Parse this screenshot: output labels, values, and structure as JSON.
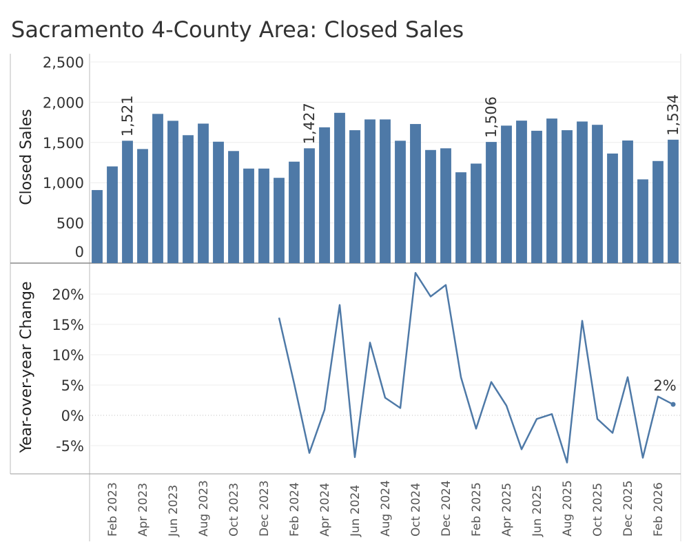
{
  "title": "Sacramento 4-County Area: Closed Sales",
  "colors": {
    "bar": "#4e79a7",
    "line": "#4e79a7",
    "text": "#333333",
    "grid": "#ececec",
    "axis": "#888888"
  },
  "chart_data": [
    {
      "type": "bar",
      "ylabel": "Closed Sales",
      "ylim": [
        0,
        2500
      ],
      "yticks": [
        0,
        500,
        1000,
        1500,
        2000,
        2500
      ],
      "ytick_labels": [
        "0",
        "500",
        "1,000",
        "1,500",
        "2,000",
        "2,500"
      ],
      "grid": true,
      "categories": [
        "Jan 2023",
        "Feb 2023",
        "Mar 2023",
        "Apr 2023",
        "May 2023",
        "Jun 2023",
        "Jul 2023",
        "Aug 2023",
        "Sep 2023",
        "Oct 2023",
        "Nov 2023",
        "Dec 2023",
        "Jan 2024",
        "Feb 2024",
        "Mar 2024",
        "Apr 2024",
        "May 2024",
        "Jun 2024",
        "Jul 2024",
        "Aug 2024",
        "Sep 2024",
        "Oct 2024",
        "Nov 2024",
        "Dec 2024",
        "Jan 2025",
        "Feb 2025",
        "Mar 2025",
        "Apr 2025",
        "May 2025",
        "Jun 2025",
        "Jul 2025",
        "Aug 2025",
        "Sep 2025",
        "Oct 2025",
        "Nov 2025",
        "Dec 2025",
        "Jan 2026",
        "Feb 2026",
        "Mar 2026"
      ],
      "values": [
        908,
        1202,
        1521,
        1418,
        1855,
        1769,
        1590,
        1734,
        1509,
        1393,
        1175,
        1175,
        1060,
        1261,
        1427,
        1688,
        1868,
        1652,
        1786,
        1786,
        1521,
        1729,
        1406,
        1427,
        1129,
        1237,
        1506,
        1709,
        1771,
        1645,
        1797,
        1652,
        1760,
        1719,
        1362,
        1524,
        1041,
        1269,
        1534
      ],
      "data_labels": [
        {
          "index": 2,
          "text": "1,521"
        },
        {
          "index": 14,
          "text": "1,427"
        },
        {
          "index": 26,
          "text": "1,506"
        },
        {
          "index": 38,
          "text": "1,534"
        }
      ]
    },
    {
      "type": "line",
      "ylabel": "Year-over-year Change",
      "ylim": [
        -9,
        24
      ],
      "yticks": [
        -5,
        0,
        5,
        10,
        15,
        20
      ],
      "ytick_labels": [
        "-5%",
        "0%",
        "5%",
        "10%",
        "15%",
        "20%"
      ],
      "grid": true,
      "x": [
        "Jan 2024",
        "Feb 2024",
        "Mar 2024",
        "Apr 2024",
        "May 2024",
        "Jun 2024",
        "Jul 2024",
        "Aug 2024",
        "Sep 2024",
        "Oct 2024",
        "Nov 2024",
        "Dec 2024",
        "Jan 2025",
        "Feb 2025",
        "Mar 2025",
        "Apr 2025",
        "May 2025",
        "Jun 2025",
        "Jul 2025",
        "Aug 2025",
        "Sep 2025",
        "Oct 2025",
        "Nov 2025",
        "Dec 2025",
        "Jan 2026",
        "Feb 2026",
        "Mar 2026"
      ],
      "values": [
        16.1,
        5.2,
        -6.2,
        0.9,
        18.2,
        -6.9,
        12.0,
        2.9,
        1.2,
        23.5,
        19.6,
        21.5,
        6.3,
        -2.2,
        5.5,
        1.6,
        -5.6,
        -0.6,
        0.2,
        -7.8,
        15.6,
        -0.6,
        -2.9,
        6.3,
        -7.0,
        3.1,
        1.8
      ],
      "data_labels": [
        {
          "index": 26,
          "text": "2%"
        }
      ]
    }
  ],
  "x_axis": {
    "tick_labels": [
      {
        "index": 1,
        "text": "Feb 2023"
      },
      {
        "index": 3,
        "text": "Apr 2023"
      },
      {
        "index": 5,
        "text": "Jun 2023"
      },
      {
        "index": 7,
        "text": "Aug 2023"
      },
      {
        "index": 9,
        "text": "Oct 2023"
      },
      {
        "index": 11,
        "text": "Dec 2023"
      },
      {
        "index": 13,
        "text": "Feb 2024"
      },
      {
        "index": 15,
        "text": "Apr 2024"
      },
      {
        "index": 17,
        "text": "Jun 2024"
      },
      {
        "index": 19,
        "text": "Aug 2024"
      },
      {
        "index": 21,
        "text": "Oct 2024"
      },
      {
        "index": 23,
        "text": "Dec 2024"
      },
      {
        "index": 25,
        "text": "Feb 2025"
      },
      {
        "index": 27,
        "text": "Apr 2025"
      },
      {
        "index": 29,
        "text": "Jun 2025"
      },
      {
        "index": 31,
        "text": "Aug 2025"
      },
      {
        "index": 33,
        "text": "Oct 2025"
      },
      {
        "index": 35,
        "text": "Dec 2025"
      },
      {
        "index": 37,
        "text": "Feb 2026"
      }
    ]
  }
}
